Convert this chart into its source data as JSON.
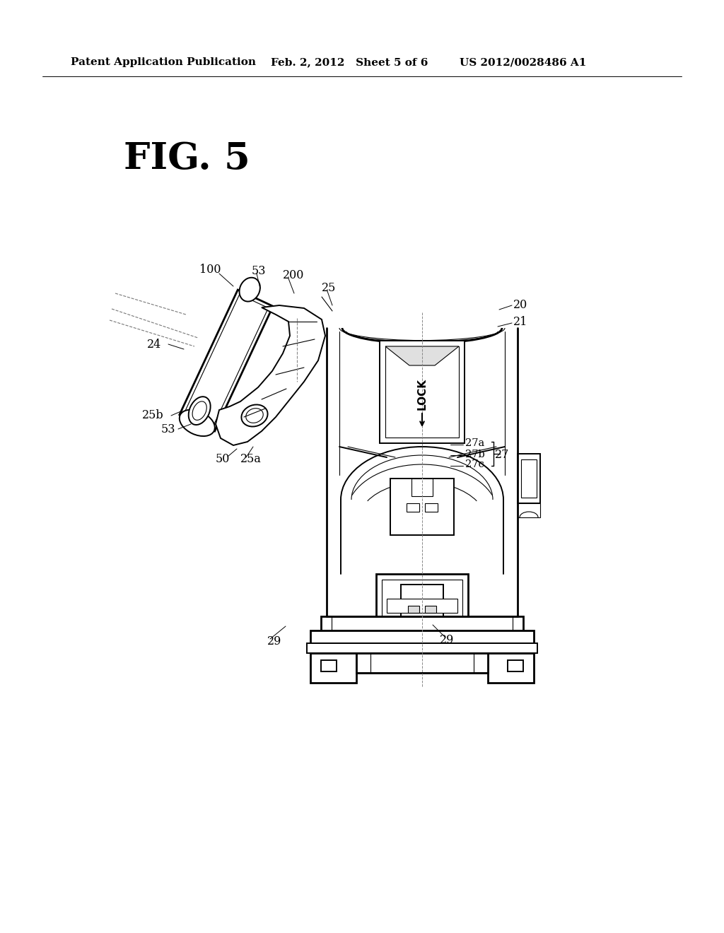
{
  "title": "FIG. 5",
  "header_left": "Patent Application Publication",
  "header_center": "Feb. 2, 2012   Sheet 5 of 6",
  "header_right": "US 2012/0028486 A1",
  "bg_color": "#ffffff",
  "line_color": "#000000"
}
